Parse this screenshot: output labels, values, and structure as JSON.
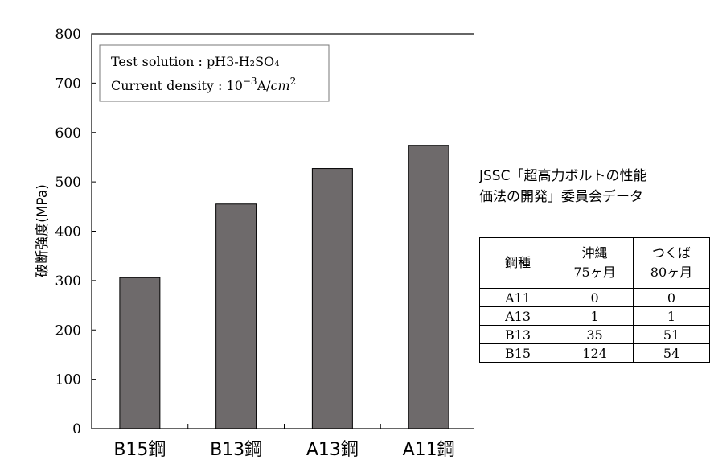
{
  "chart_data": {
    "type": "bar",
    "categories": [
      "B15鋼",
      "B13鋼",
      "A13鋼",
      "A11鋼"
    ],
    "values": [
      306,
      455,
      527,
      574
    ],
    "ylabel": "破断強度(MPa)",
    "xlabel": "",
    "ylim": [
      0,
      800
    ],
    "yticks": [
      "0",
      "100",
      "200",
      "300",
      "400",
      "500",
      "600",
      "700",
      "800"
    ],
    "bar_color": "#6e6a6b",
    "grid": false,
    "legend_box": {
      "line1": "Test solution : pH3-H₂SO₄",
      "line2_prefix": "Current density : 10",
      "line2_exp": "−3",
      "line2_unit": "A/",
      "line2_unit_italic": "cm",
      "line2_unit_exp": "2"
    }
  },
  "side_panel": {
    "caption_line1": "JSSC「超高力ボルトの性能",
    "caption_line2": "価法の開発」委員会データ",
    "table": {
      "headers": [
        {
          "line1": "鋼種",
          "line2": ""
        },
        {
          "line1": "沖縄",
          "line2": "75ヶ月"
        },
        {
          "line1": "つくば",
          "line2": "80ヶ月"
        }
      ],
      "rows": [
        [
          "A11",
          "0",
          "0"
        ],
        [
          "A13",
          "1",
          "1"
        ],
        [
          "B13",
          "35",
          "51"
        ],
        [
          "B15",
          "124",
          "54"
        ]
      ]
    }
  }
}
